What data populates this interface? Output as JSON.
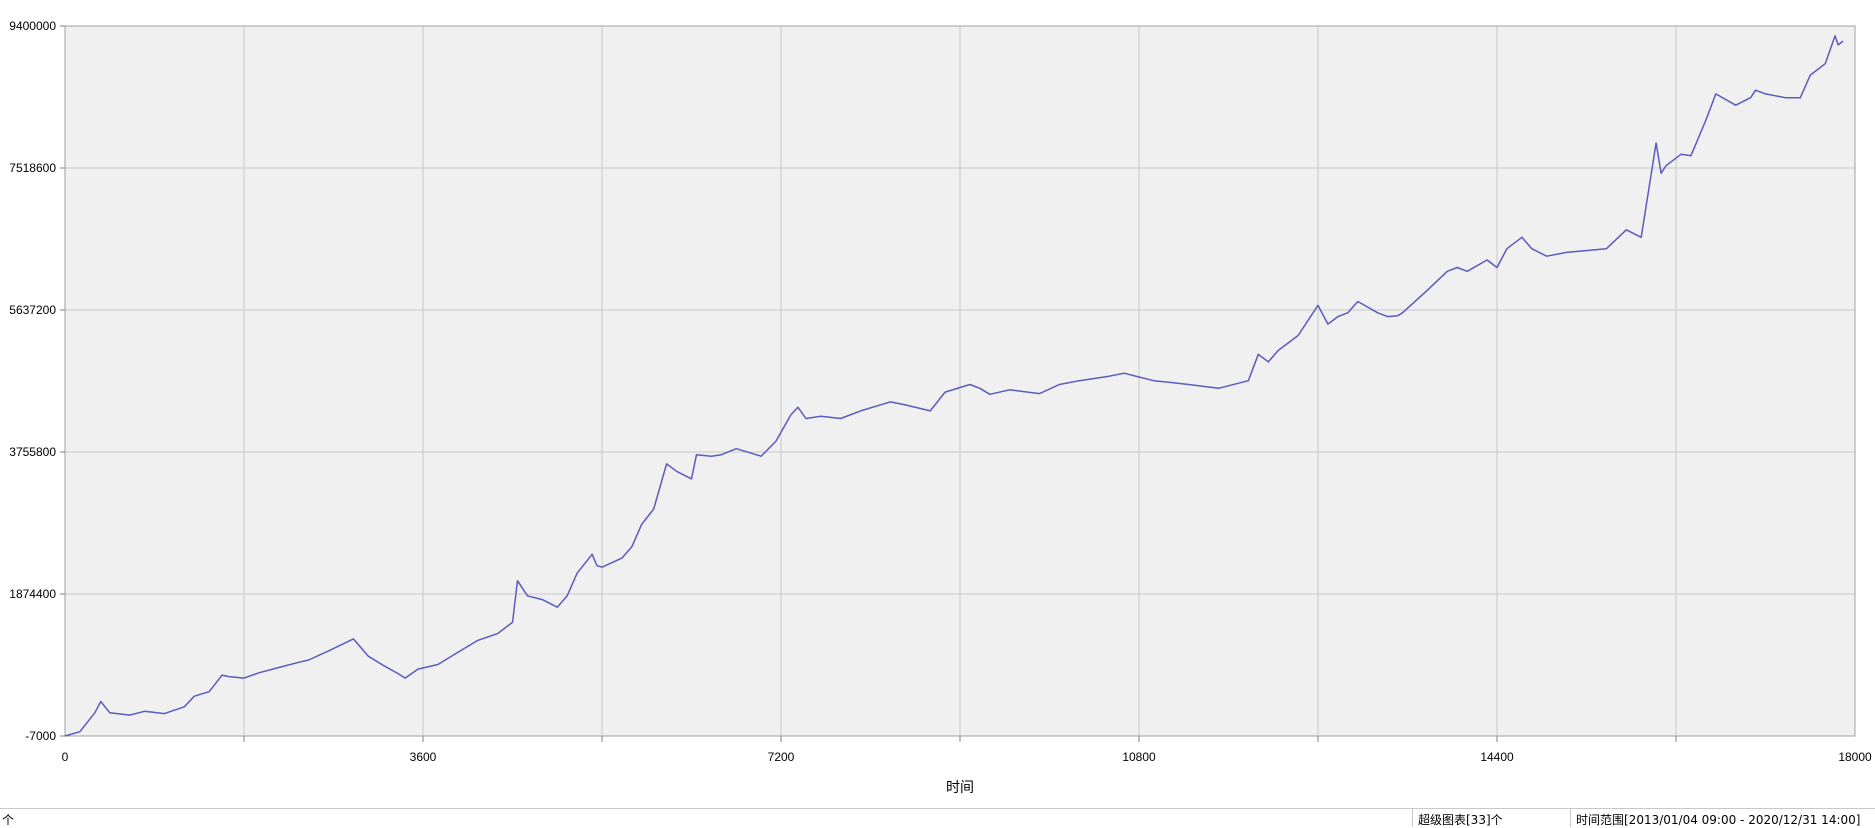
{
  "chart_data": {
    "type": "line",
    "title": "",
    "xlabel": "时间",
    "ylabel": "",
    "xlim": [
      0,
      18000
    ],
    "ylim": [
      -7000,
      9400000
    ],
    "x_ticks": [
      0,
      3600,
      7200,
      10800,
      14400,
      18000
    ],
    "y_ticks": [
      -7000,
      1874400,
      3755800,
      5637200,
      7518600,
      9400000
    ],
    "grid": true,
    "colors": {
      "line": "#5b5bbf",
      "plot_bg": "#f0f0f0",
      "grid": "#c8c8c8"
    },
    "series": [
      {
        "x": [
          0,
          150,
          300,
          360,
          450,
          650,
          800,
          1000,
          1200,
          1300,
          1450,
          1580,
          1650,
          1800,
          1950,
          2150,
          2350,
          2450,
          2650,
          2900,
          3050,
          3200,
          3350,
          3420,
          3550,
          3750,
          3950,
          4150,
          4350,
          4500,
          4550,
          4650,
          4800,
          4950,
          5050,
          5150,
          5300,
          5350,
          5400,
          5600,
          5700,
          5800,
          5920,
          6050,
          6150,
          6300,
          6350,
          6500,
          6600,
          6750,
          7000,
          7150,
          7300,
          7370,
          7450,
          7600,
          7800,
          8000,
          8300,
          8450,
          8700,
          8850,
          9100,
          9200,
          9300,
          9500,
          9800,
          10000,
          10200,
          10500,
          10650,
          10800,
          10950,
          11100,
          11300,
          11600,
          11900,
          12000,
          12100,
          12200,
          12400,
          12600,
          12700,
          12800,
          12900,
          13000,
          13200,
          13300,
          13400,
          13450,
          13700,
          13900,
          14000,
          14100,
          14300,
          14400,
          14500,
          14650,
          14750,
          14900,
          15100,
          15500,
          15700,
          15850,
          16000,
          16050,
          16100,
          16250,
          16350,
          16500,
          16600,
          16800,
          16950,
          17000,
          17100,
          17300,
          17450,
          17550,
          17700,
          17800,
          17830,
          17880
        ],
        "y": [
          -7000,
          50000,
          300000,
          450000,
          300000,
          270000,
          320000,
          290000,
          380000,
          520000,
          580000,
          800000,
          780000,
          760000,
          830000,
          900000,
          970000,
          1000000,
          1120000,
          1280000,
          1050000,
          930000,
          820000,
          760000,
          880000,
          940000,
          1100000,
          1260000,
          1350000,
          1500000,
          2050000,
          1850000,
          1800000,
          1700000,
          1850000,
          2150000,
          2400000,
          2250000,
          2230000,
          2350000,
          2500000,
          2800000,
          3000000,
          3600000,
          3500000,
          3400000,
          3720000,
          3700000,
          3720000,
          3800000,
          3700000,
          3900000,
          4250000,
          4350000,
          4200000,
          4230000,
          4200000,
          4300000,
          4420000,
          4380000,
          4300000,
          4550000,
          4650000,
          4600000,
          4520000,
          4580000,
          4530000,
          4650000,
          4700000,
          4760000,
          4800000,
          4750000,
          4700000,
          4680000,
          4650000,
          4600000,
          4700000,
          5050000,
          4950000,
          5100000,
          5300000,
          5700000,
          5450000,
          5550000,
          5600000,
          5750000,
          5600000,
          5550000,
          5560000,
          5600000,
          5900000,
          6150000,
          6200000,
          6150000,
          6300000,
          6200000,
          6450000,
          6600000,
          6450000,
          6350000,
          6400000,
          6450000,
          6700000,
          6600000,
          7850000,
          7450000,
          7550000,
          7700000,
          7680000,
          8150000,
          8500000,
          8350000,
          8450000,
          8550000,
          8500000,
          8450000,
          8450000,
          8750000,
          8900000,
          9270000,
          9150000,
          9200000
        ]
      }
    ]
  },
  "status_bar": {
    "left_text": "个",
    "charts_count": "超级图表[33]个",
    "time_range": "时间范围[2013/01/04 09:00 - 2020/12/31 14:00]"
  }
}
